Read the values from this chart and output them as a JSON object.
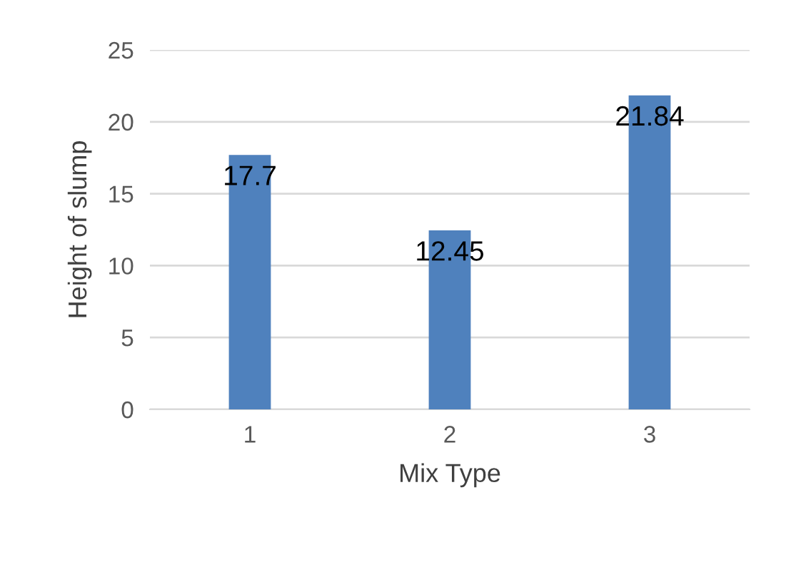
{
  "chart_data": {
    "type": "bar",
    "xlabel": "Mix Type",
    "ylabel": "Height of slump",
    "categories": [
      "1",
      "2",
      "3"
    ],
    "values": [
      17.7,
      12.45,
      21.84
    ],
    "color": "#4f81bd",
    "ylim": [
      0,
      25
    ],
    "yticks": [
      0,
      5,
      10,
      15,
      20,
      25
    ],
    "grid": "y",
    "data_labels": true
  }
}
